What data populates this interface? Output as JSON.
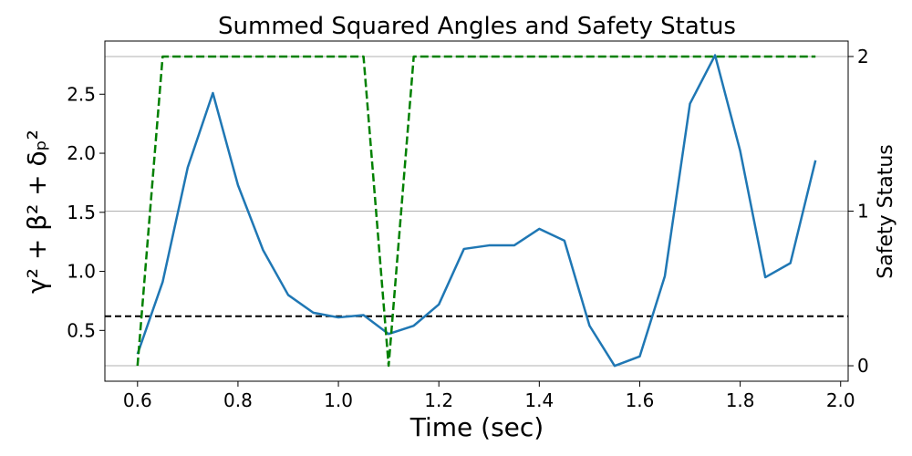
{
  "chart_data": {
    "type": "line",
    "title": "Summed Squared Angles and Safety Status",
    "xlabel": "Time (sec)",
    "ylabel": "γ² + β² + δₚ²",
    "y2label": "Safety Status",
    "xlim": [
      0.535,
      2.015
    ],
    "ylim": [
      0.07,
      2.95
    ],
    "y2lim": [
      -0.1,
      2.1
    ],
    "x_ticks": [
      0.6,
      0.8,
      1.0,
      1.2,
      1.4,
      1.6,
      1.8,
      2.0
    ],
    "x_tick_labels": [
      "0.6",
      "0.8",
      "1.0",
      "1.2",
      "1.4",
      "1.6",
      "1.8",
      "2.0"
    ],
    "y_ticks": [
      0.5,
      1.0,
      1.5,
      2.0,
      2.5
    ],
    "y_tick_labels": [
      "0.5",
      "1.0",
      "1.5",
      "2.0",
      "2.5"
    ],
    "y2_ticks": [
      0,
      1,
      2
    ],
    "y2_tick_labels": [
      "0",
      "1",
      "2"
    ],
    "grid": "horizontal lines at right-axis ticks",
    "threshold": {
      "y": 0.62,
      "color": "#000000",
      "style": "dashed"
    },
    "series": [
      {
        "axis": "left",
        "color": "#1f77b4",
        "style": "solid",
        "x": [
          0.6,
          0.65,
          0.7,
          0.75,
          0.8,
          0.85,
          0.9,
          0.95,
          1.0,
          1.05,
          1.1,
          1.15,
          1.2,
          1.25,
          1.3,
          1.35,
          1.4,
          1.45,
          1.5,
          1.55,
          1.6,
          1.65,
          1.7,
          1.75,
          1.8,
          1.85,
          1.9,
          1.95
        ],
        "values": [
          0.3,
          0.91,
          1.88,
          2.51,
          1.73,
          1.18,
          0.8,
          0.65,
          0.61,
          0.63,
          0.47,
          0.54,
          0.72,
          1.19,
          1.22,
          1.22,
          1.36,
          1.26,
          0.54,
          0.2,
          0.28,
          0.96,
          2.42,
          2.83,
          2.02,
          0.95,
          1.07,
          1.94
        ]
      },
      {
        "axis": "right",
        "color": "#008000",
        "style": "dashed",
        "x": [
          0.6,
          0.65,
          0.7,
          0.75,
          0.8,
          0.85,
          0.9,
          0.95,
          1.0,
          1.05,
          1.1,
          1.15,
          1.2,
          1.25,
          1.3,
          1.35,
          1.4,
          1.45,
          1.5,
          1.55,
          1.6,
          1.65,
          1.7,
          1.75,
          1.8,
          1.85,
          1.9,
          1.95
        ],
        "values": [
          0,
          2,
          2,
          2,
          2,
          2,
          2,
          2,
          2,
          2,
          0,
          2,
          2,
          2,
          2,
          2,
          2,
          2,
          2,
          2,
          2,
          2,
          2,
          2,
          2,
          2,
          2,
          2
        ]
      }
    ]
  }
}
